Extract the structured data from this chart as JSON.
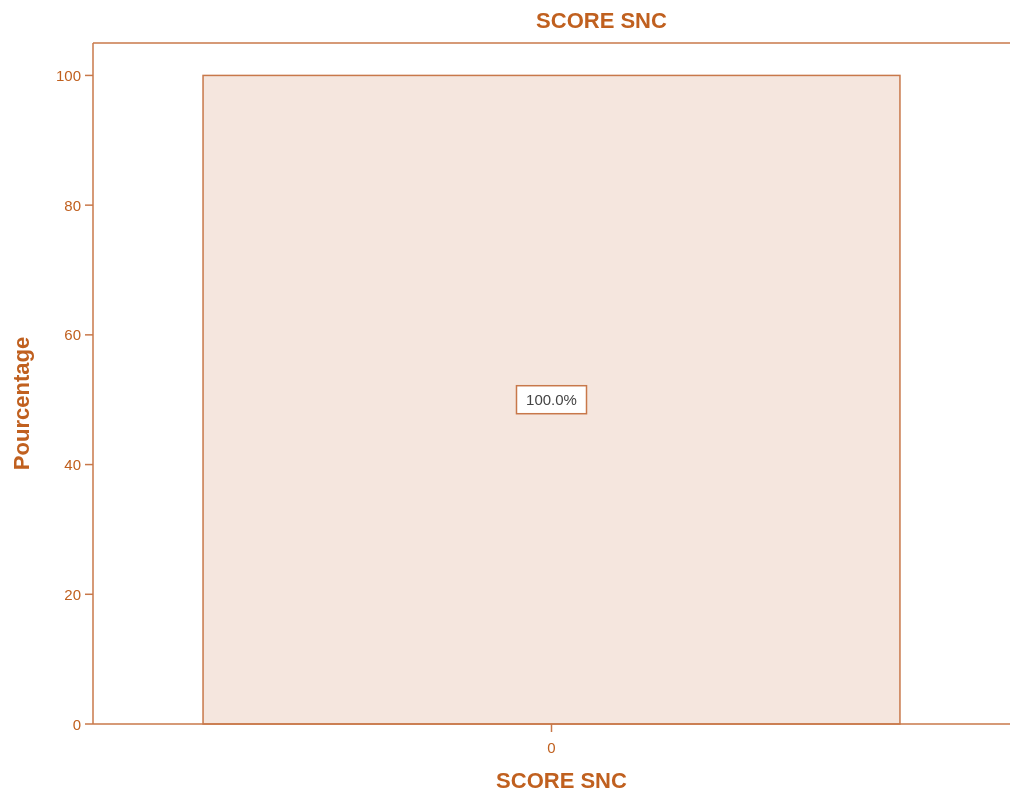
{
  "chart_data": {
    "type": "bar",
    "title": "SCORE SNC",
    "xlabel": "SCORE SNC",
    "ylabel": "Pourcentage",
    "categories": [
      "0"
    ],
    "series": [
      {
        "color": "#f5e6de",
        "values": [
          100
        ],
        "value_labels": [
          "100.0%"
        ]
      }
    ],
    "ylim": [
      0,
      105
    ],
    "yticks": [
      0,
      20,
      40,
      60,
      80,
      100
    ],
    "grid": false
  }
}
